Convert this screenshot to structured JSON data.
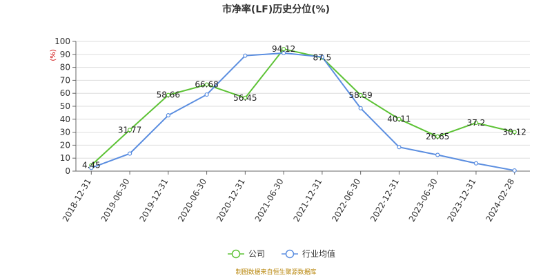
{
  "chart_data": {
    "type": "line",
    "title": "市净率(LF)历史分位(%)",
    "y_unit": "(%)",
    "categories": [
      "2018-12-31",
      "2019-06-30",
      "2019-12-31",
      "2020-06-30",
      "2020-12-31",
      "2021-06-30",
      "2021-12-31",
      "2022-06-30",
      "2022-12-31",
      "2023-06-30",
      "2023-12-31",
      "2024-02-28"
    ],
    "ylim": [
      0,
      100
    ],
    "yticks": [
      0,
      10,
      20,
      30,
      40,
      50,
      60,
      70,
      80,
      90,
      100
    ],
    "grid": true,
    "legend_position": "bottom",
    "series": [
      {
        "name": "公司",
        "color": "#5cc234",
        "values": [
          4.45,
          31.77,
          58.66,
          66.68,
          56.45,
          94.12,
          87.5,
          58.59,
          40.11,
          26.65,
          37.2,
          30.12
        ],
        "labels": [
          "4.45",
          "31.77",
          "58.66",
          "66.68",
          "56.45",
          "94.12",
          "87.5",
          "58.59",
          "40.11",
          "26.65",
          "37.2",
          "30.12"
        ]
      },
      {
        "name": "行业均值",
        "color": "#5b8ee0",
        "values": [
          2.5,
          13.5,
          43,
          59,
          89,
          91,
          88,
          48.5,
          18.5,
          12.5,
          6,
          0.5
        ]
      }
    ],
    "source": "制图数据来自恒生聚源数据库"
  }
}
